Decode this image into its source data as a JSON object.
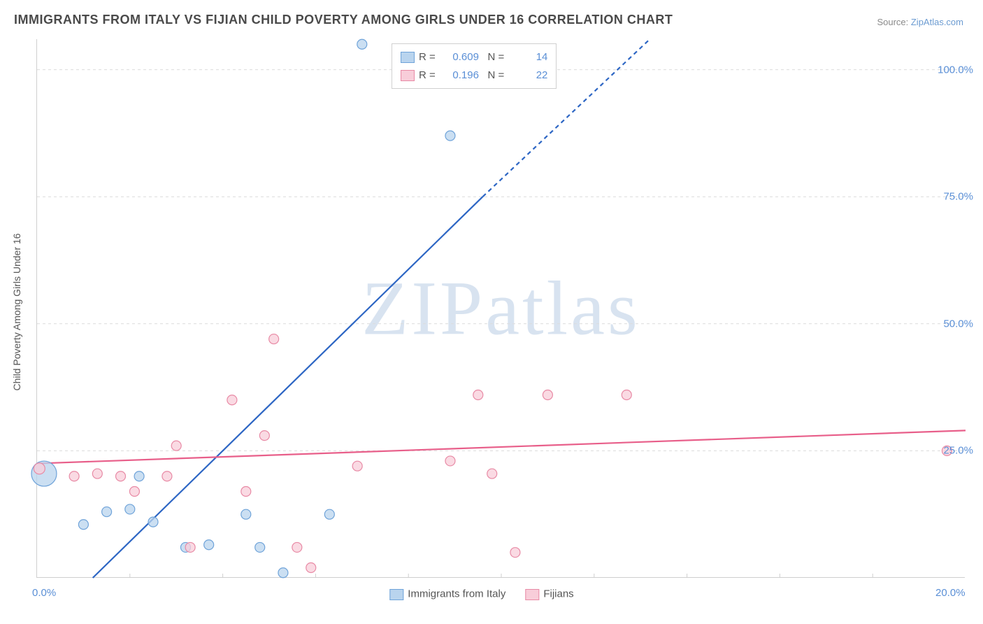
{
  "title": "IMMIGRANTS FROM ITALY VS FIJIAN CHILD POVERTY AMONG GIRLS UNDER 16 CORRELATION CHART",
  "source_prefix": "Source: ",
  "source_link": "ZipAtlas.com",
  "ylabel": "Child Poverty Among Girls Under 16",
  "watermark": "ZIPatlas",
  "chart": {
    "type": "scatter-regression",
    "xlim": [
      0,
      20
    ],
    "ylim": [
      0,
      106
    ],
    "background_color": "#ffffff",
    "grid_color": "#dcdcdc",
    "axis_color": "#cfcfcf",
    "yticks": [
      {
        "v": 25,
        "label": "25.0%"
      },
      {
        "v": 50,
        "label": "50.0%"
      },
      {
        "v": 75,
        "label": "75.0%"
      },
      {
        "v": 100,
        "label": "100.0%"
      }
    ],
    "xticks": [
      {
        "v": 0,
        "label": "0.0%"
      },
      {
        "v": 20,
        "label": "20.0%"
      }
    ],
    "xtick_marks": [
      2,
      4,
      6,
      8,
      10,
      12,
      14,
      16,
      18
    ],
    "series": [
      {
        "name": "Immigrants from Italy",
        "fill": "#b9d4ee",
        "stroke": "#6fa3d9",
        "marker_opacity": 0.75,
        "line_stroke": "#2d66c4",
        "line_width": 2.2,
        "R": "0.609",
        "N": "14",
        "reg": {
          "x1": 1.2,
          "y1": 0,
          "x2": 9.6,
          "y2": 75.0
        },
        "reg_dash": {
          "x1": 9.6,
          "y1": 75.0,
          "x2": 13.2,
          "y2": 106
        },
        "points": [
          {
            "x": 0.15,
            "y": 20.5,
            "r": 18
          },
          {
            "x": 1.0,
            "y": 10.5,
            "r": 7
          },
          {
            "x": 1.5,
            "y": 13,
            "r": 7
          },
          {
            "x": 2.0,
            "y": 13.5,
            "r": 7
          },
          {
            "x": 2.2,
            "y": 20,
            "r": 7
          },
          {
            "x": 2.5,
            "y": 11,
            "r": 7
          },
          {
            "x": 3.2,
            "y": 6,
            "r": 7
          },
          {
            "x": 3.7,
            "y": 6.5,
            "r": 7
          },
          {
            "x": 4.5,
            "y": 12.5,
            "r": 7
          },
          {
            "x": 4.8,
            "y": 6,
            "r": 7
          },
          {
            "x": 5.3,
            "y": 1,
            "r": 7
          },
          {
            "x": 6.3,
            "y": 12.5,
            "r": 7
          },
          {
            "x": 7.0,
            "y": 105,
            "r": 7
          },
          {
            "x": 8.9,
            "y": 87,
            "r": 7
          }
        ]
      },
      {
        "name": "Fijians",
        "fill": "#f8cdd9",
        "stroke": "#e88aa5",
        "marker_opacity": 0.75,
        "line_stroke": "#e85f8a",
        "line_width": 2.2,
        "R": "0.196",
        "N": "22",
        "reg": {
          "x1": 0,
          "y1": 22.5,
          "x2": 20,
          "y2": 29.0
        },
        "points": [
          {
            "x": 0.05,
            "y": 21.5,
            "r": 8
          },
          {
            "x": 0.8,
            "y": 20,
            "r": 7
          },
          {
            "x": 1.3,
            "y": 20.5,
            "r": 7
          },
          {
            "x": 1.8,
            "y": 20,
            "r": 7
          },
          {
            "x": 2.1,
            "y": 17,
            "r": 7
          },
          {
            "x": 2.8,
            "y": 20,
            "r": 7
          },
          {
            "x": 3.0,
            "y": 26,
            "r": 7
          },
          {
            "x": 3.3,
            "y": 6,
            "r": 7
          },
          {
            "x": 4.2,
            "y": 35,
            "r": 7
          },
          {
            "x": 4.5,
            "y": 17,
            "r": 7
          },
          {
            "x": 4.9,
            "y": 28,
            "r": 7
          },
          {
            "x": 5.1,
            "y": 47,
            "r": 7
          },
          {
            "x": 5.6,
            "y": 6,
            "r": 7
          },
          {
            "x": 5.9,
            "y": 2,
            "r": 7
          },
          {
            "x": 6.9,
            "y": 22,
            "r": 7
          },
          {
            "x": 8.9,
            "y": 23,
            "r": 7
          },
          {
            "x": 9.5,
            "y": 36,
            "r": 7
          },
          {
            "x": 9.8,
            "y": 20.5,
            "r": 7
          },
          {
            "x": 10.3,
            "y": 5,
            "r": 7
          },
          {
            "x": 11.0,
            "y": 36,
            "r": 7
          },
          {
            "x": 12.7,
            "y": 36,
            "r": 7
          },
          {
            "x": 19.6,
            "y": 25,
            "r": 7
          }
        ]
      }
    ],
    "legend_labels": {
      "R": "R =",
      "N": "N ="
    },
    "tick_color": "#5a8fd6",
    "label_color": "#555555"
  }
}
